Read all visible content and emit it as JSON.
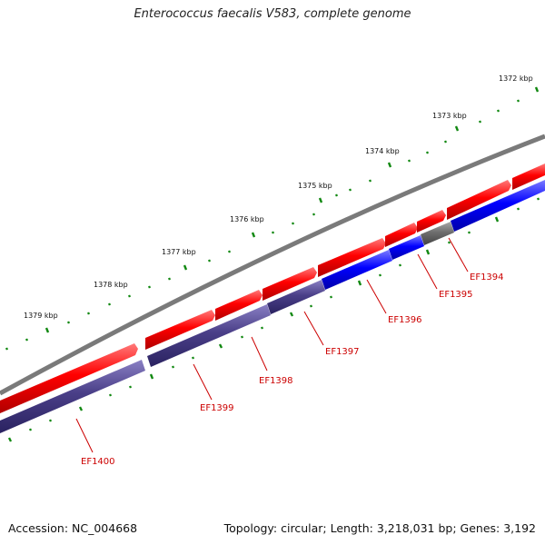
{
  "title": "Enterococcus faecalis V583, complete genome",
  "footer": {
    "accession": "Accession: NC_004668",
    "summary": "Topology: circular; Length: 3,218,031 bp; Genes: 3,192"
  },
  "colors": {
    "backbone": "#7a7a7a",
    "forward_gene": "#ff0000",
    "reverse_gene_dark": "#4a3f88",
    "reverse_gene_blue": "#0000ff",
    "reverse_gene_gray": "#6e6e6e",
    "tick": "#118811",
    "label": "#cc0000"
  },
  "ruler": {
    "labels": [
      "1372 kbp",
      "1373 kbp",
      "1374 kbp",
      "1375 kbp",
      "1376 kbp",
      "1377 kbp",
      "1378 kbp",
      "1379 kbp"
    ]
  },
  "gene_labels": [
    "EF1394",
    "EF1395",
    "EF1396",
    "EF1397",
    "EF1398",
    "EF1399",
    "EF1400"
  ]
}
